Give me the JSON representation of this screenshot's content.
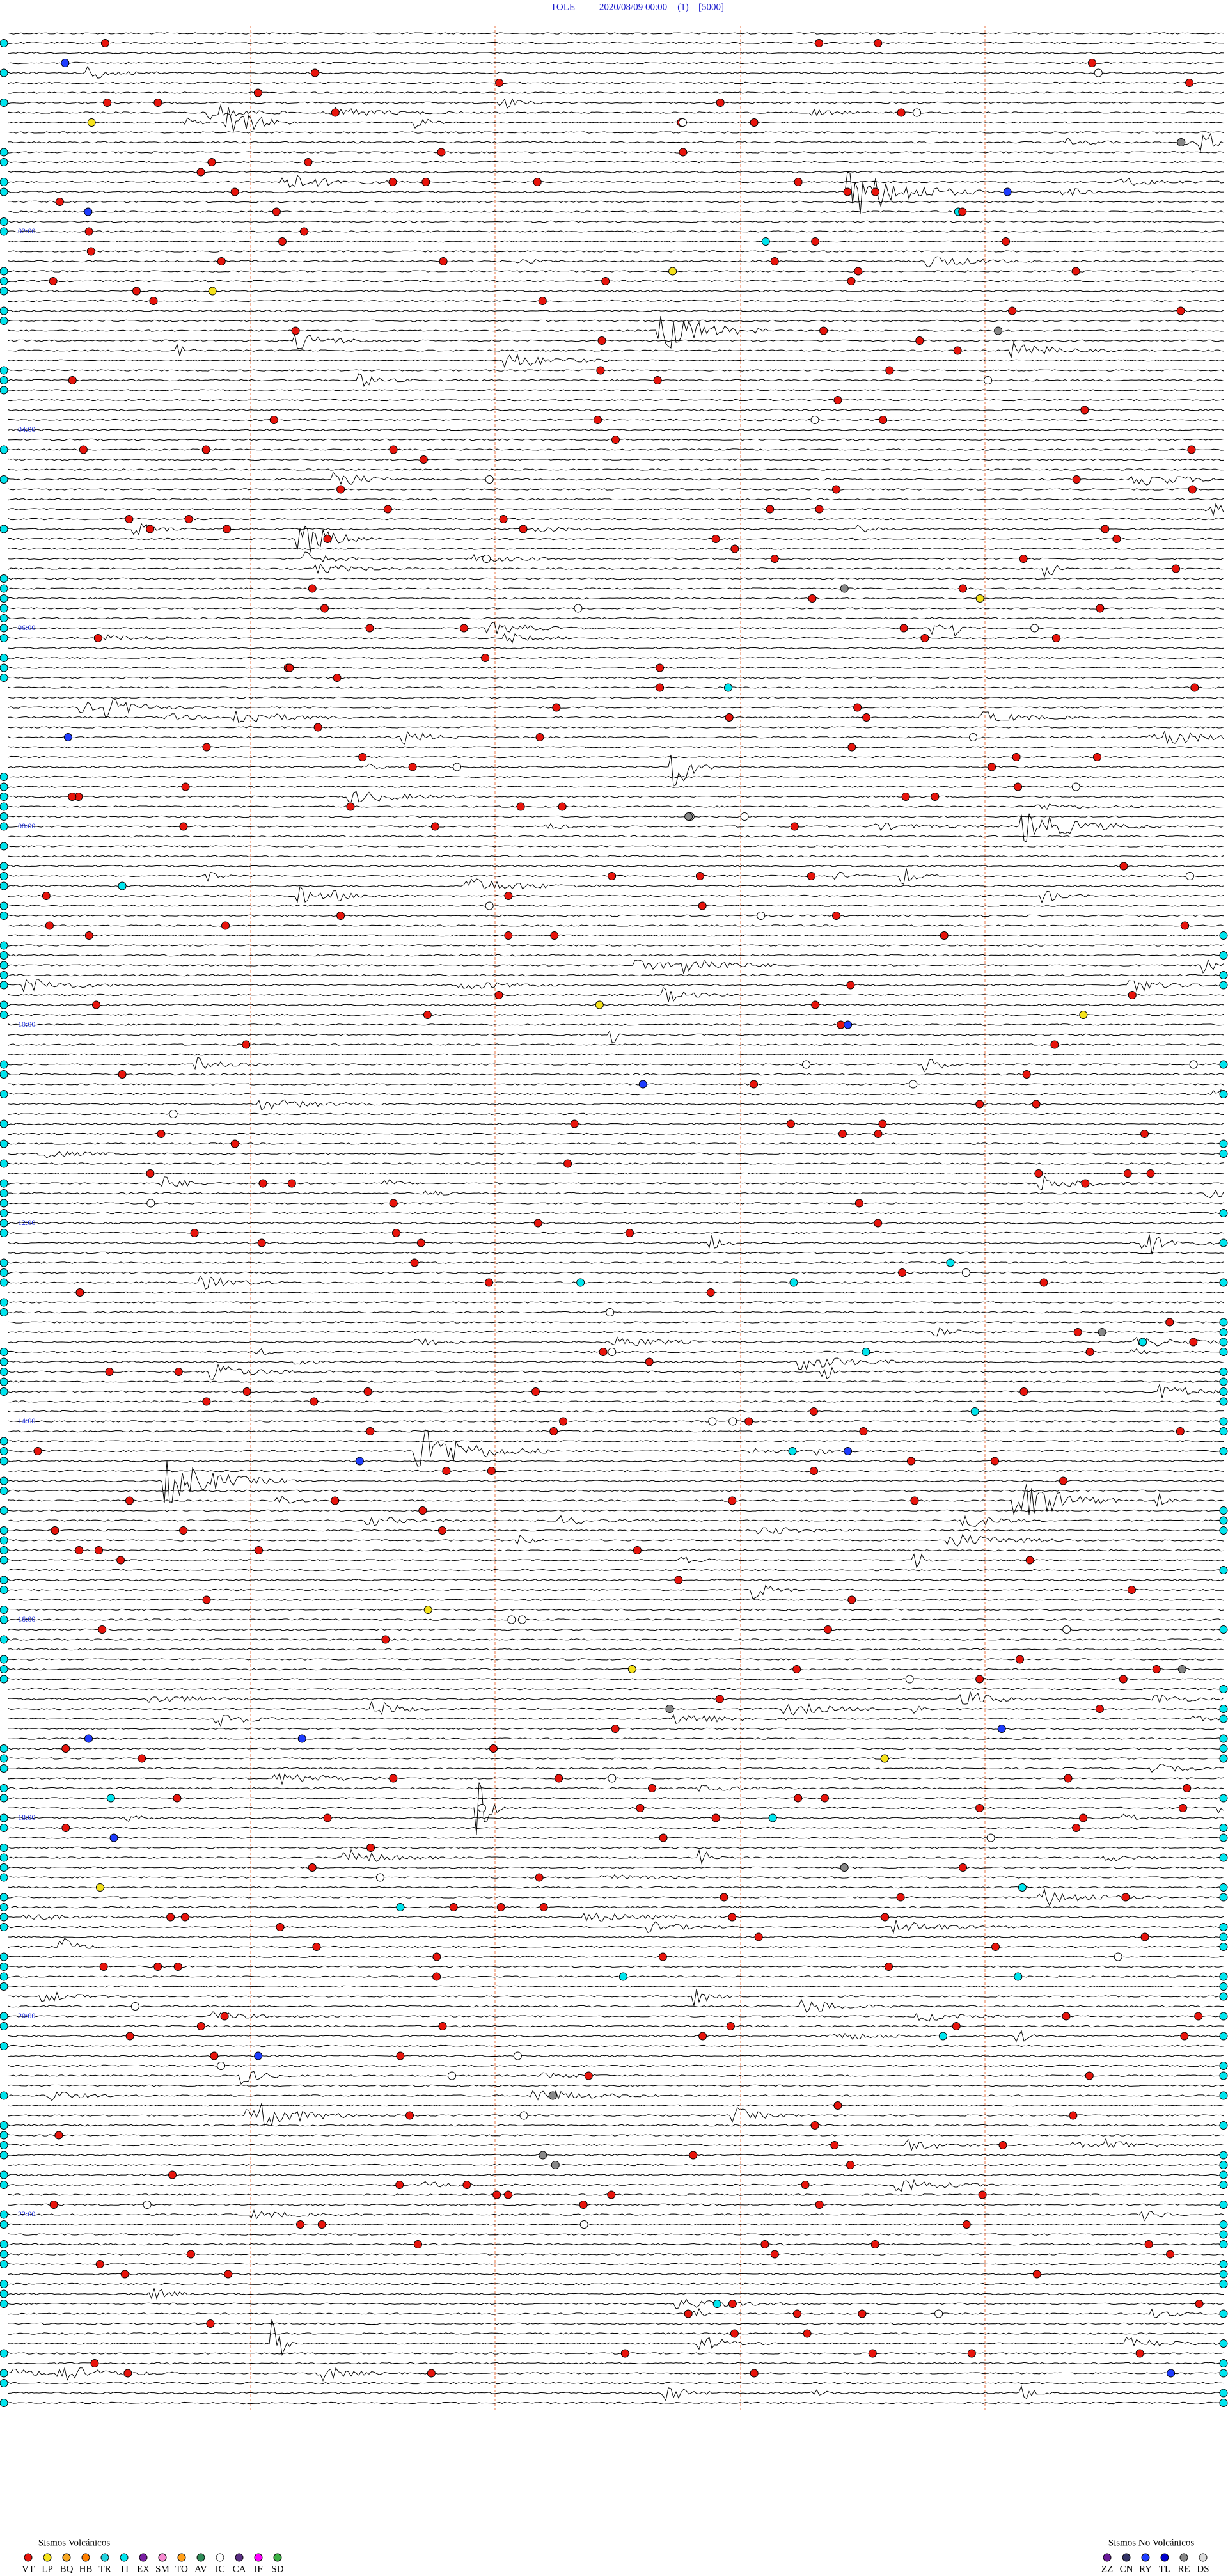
{
  "header": {
    "station": "TOLE",
    "datetime": "2020/08/09 00:00",
    "channel": "(1)",
    "scale": "[5000]"
  },
  "hour_labels": [
    "02:00",
    "04:00",
    "06:00",
    "08:00",
    "10:00",
    "12:00",
    "14:00",
    "16:00",
    "18:00",
    "20:00",
    "22:00"
  ],
  "legend_volcanic": {
    "title": "Sismos Volcánicos",
    "items": [
      {
        "code": "VT",
        "color": "#e8140c"
      },
      {
        "code": "LP",
        "color": "#f5e21b"
      },
      {
        "code": "BQ",
        "color": "#f6a623"
      },
      {
        "code": "HB",
        "color": "#ff7f00"
      },
      {
        "code": "TR",
        "color": "#22d3e0"
      },
      {
        "code": "TI",
        "color": "#00e5ee"
      },
      {
        "code": "EX",
        "color": "#7a1fa2"
      },
      {
        "code": "SM",
        "color": "#f58ad0"
      },
      {
        "code": "TO",
        "color": "#ff9f1a"
      },
      {
        "code": "AV",
        "color": "#2e8b57"
      },
      {
        "code": "IC",
        "color": "#ffffff"
      },
      {
        "code": "CA",
        "color": "#5a2d82"
      },
      {
        "code": "IF",
        "color": "#ff00ff"
      },
      {
        "code": "SD",
        "color": "#3cb043"
      }
    ]
  },
  "legend_nonvolcanic": {
    "title": "Sismos No Volcánicos",
    "items": [
      {
        "code": "ZZ",
        "color": "#6a1b9a"
      },
      {
        "code": "CN",
        "color": "#333366"
      },
      {
        "code": "RY",
        "color": "#1e3cff"
      },
      {
        "code": "TL",
        "color": "#0000cc"
      },
      {
        "code": "RE",
        "color": "#888888"
      },
      {
        "code": "DS",
        "color": "#dddddd"
      }
    ]
  }
}
